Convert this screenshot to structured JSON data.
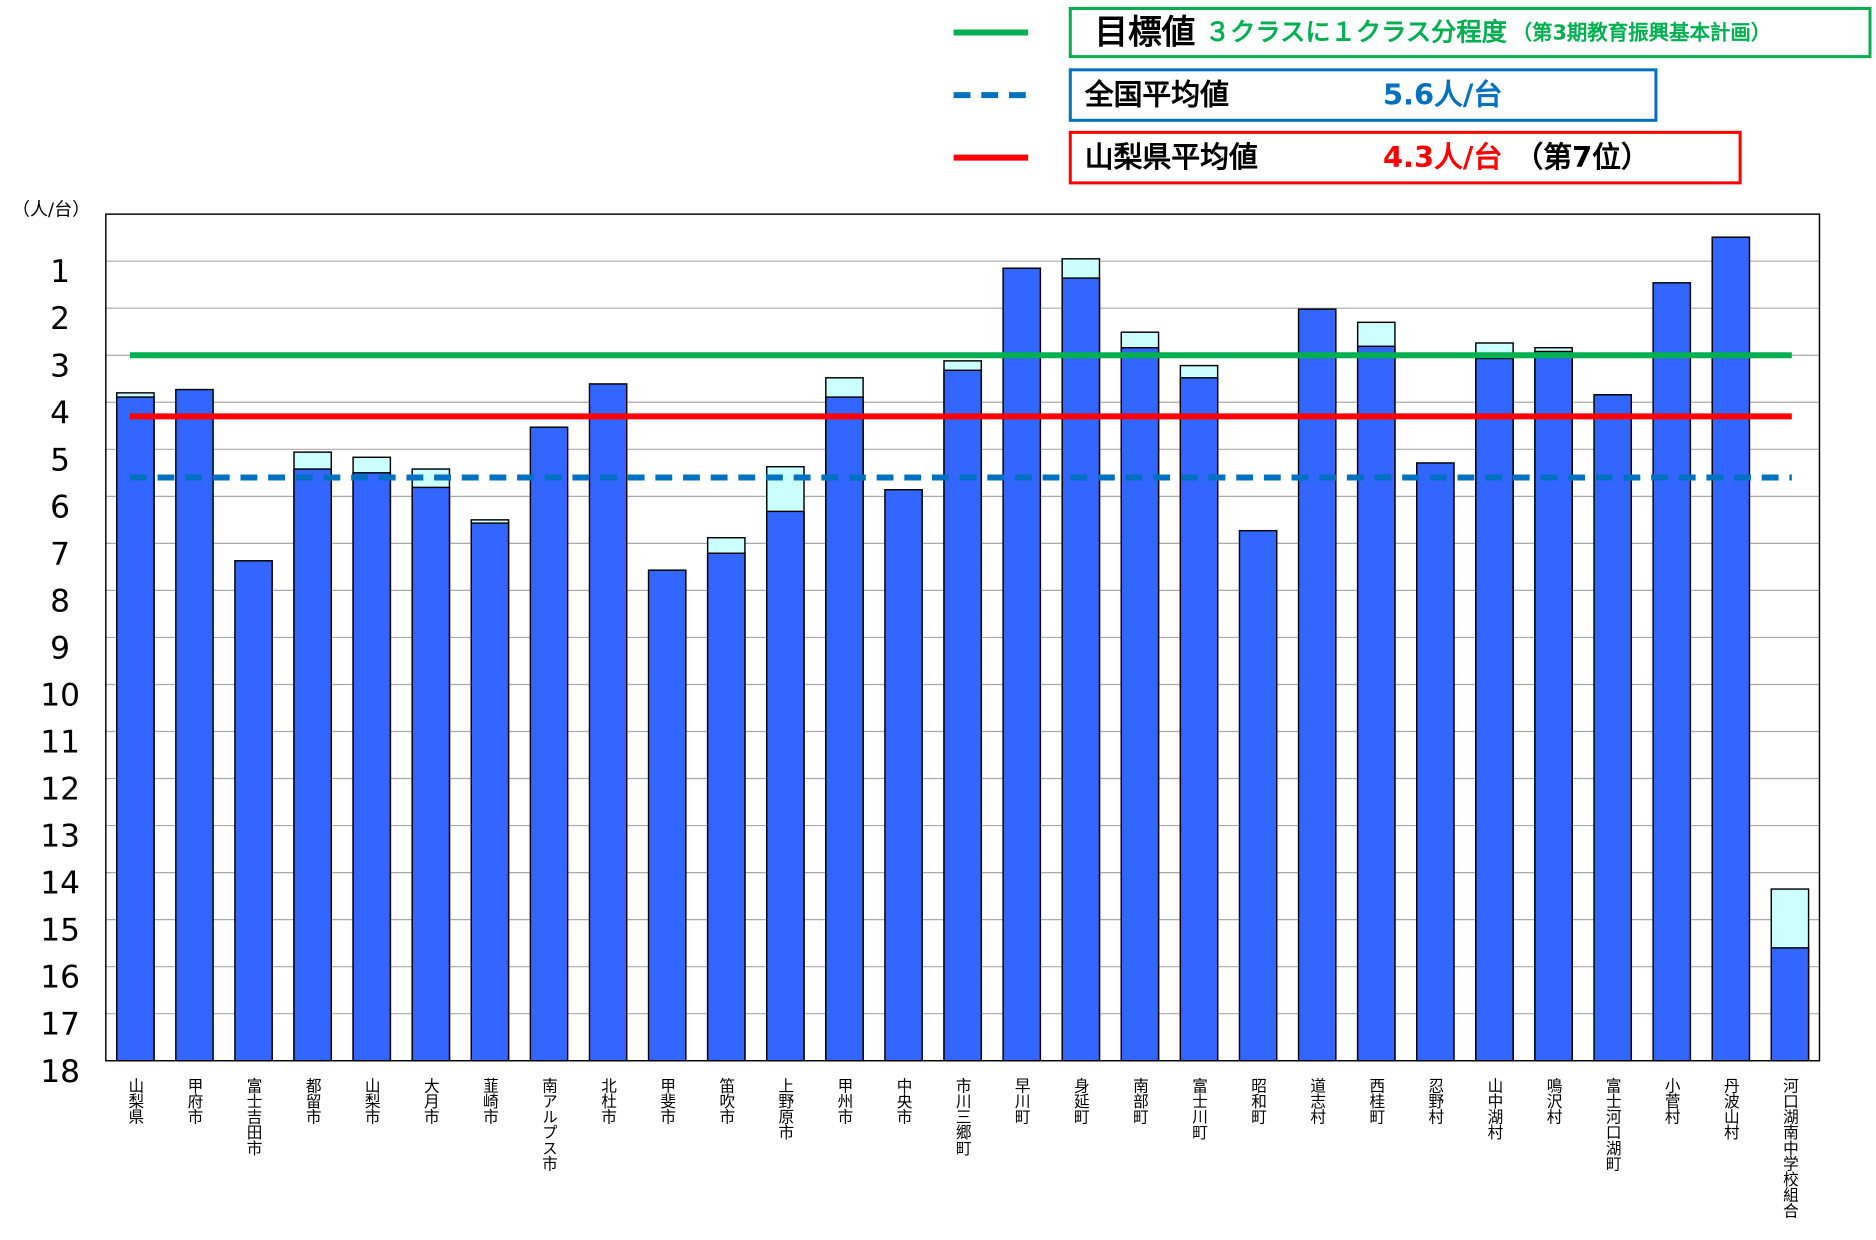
{
  "chart_data": {
    "type": "bar",
    "y_label": "（人/台）",
    "categories": [
      "山梨県",
      "甲府市",
      "富士吉田市",
      "都留市",
      "山梨市",
      "大月市",
      "韮崎市",
      "南アルプス市",
      "北杜市",
      "甲斐市",
      "笛吹市",
      "上野原市",
      "甲州市",
      "中央市",
      "市川三郷町",
      "早川町",
      "身延町",
      "南部町",
      "富士川町",
      "昭和町",
      "道志村",
      "西桂町",
      "忍野村",
      "山中湖村",
      "鳴沢村",
      "富士河口湖町",
      "小菅村",
      "丹波山村",
      "河口湖南中学校組合"
    ],
    "series": [
      {
        "color": "#ccffff",
        "values": [
          3.8,
          null,
          null,
          5.06,
          5.17,
          5.42,
          6.5,
          null,
          null,
          null,
          6.88,
          5.37,
          3.48,
          null,
          3.12,
          null,
          0.95,
          2.51,
          3.22,
          null,
          null,
          2.3,
          null,
          2.74,
          2.84,
          null,
          null,
          null,
          14.35
        ]
      },
      {
        "color": "#3366ff",
        "values": [
          3.89,
          3.73,
          7.37,
          5.42,
          5.5,
          5.81,
          6.57,
          4.53,
          3.61,
          7.57,
          7.21,
          6.32,
          3.89,
          5.86,
          3.32,
          1.15,
          1.36,
          2.84,
          3.48,
          6.73,
          2.02,
          2.81,
          5.29,
          3.07,
          2.92,
          3.84,
          1.46,
          0.49,
          15.6
        ]
      }
    ],
    "y_inverted": true,
    "ylim": [
      0,
      18
    ],
    "yticks": [
      1,
      2,
      3,
      4,
      5,
      6,
      7,
      8,
      9,
      10,
      11,
      12,
      13,
      14,
      15,
      16,
      17,
      18
    ],
    "grid": true,
    "reference_lines": [
      {
        "name": "目標値",
        "value": 3,
        "color": "#00b050",
        "dashed": false,
        "description": "３クラスに１クラス分程度",
        "note": "（第3期教育振興基本計画）"
      },
      {
        "name": "全国平均値",
        "value": 5.6,
        "value_label": "5.6人/台",
        "color": "#0070c0",
        "dashed": true
      },
      {
        "name": "山梨県平均値",
        "value": 4.3,
        "value_label": "4.3人/台",
        "color": "#ff0000",
        "dashed": false,
        "note": "（第7位）"
      }
    ]
  }
}
